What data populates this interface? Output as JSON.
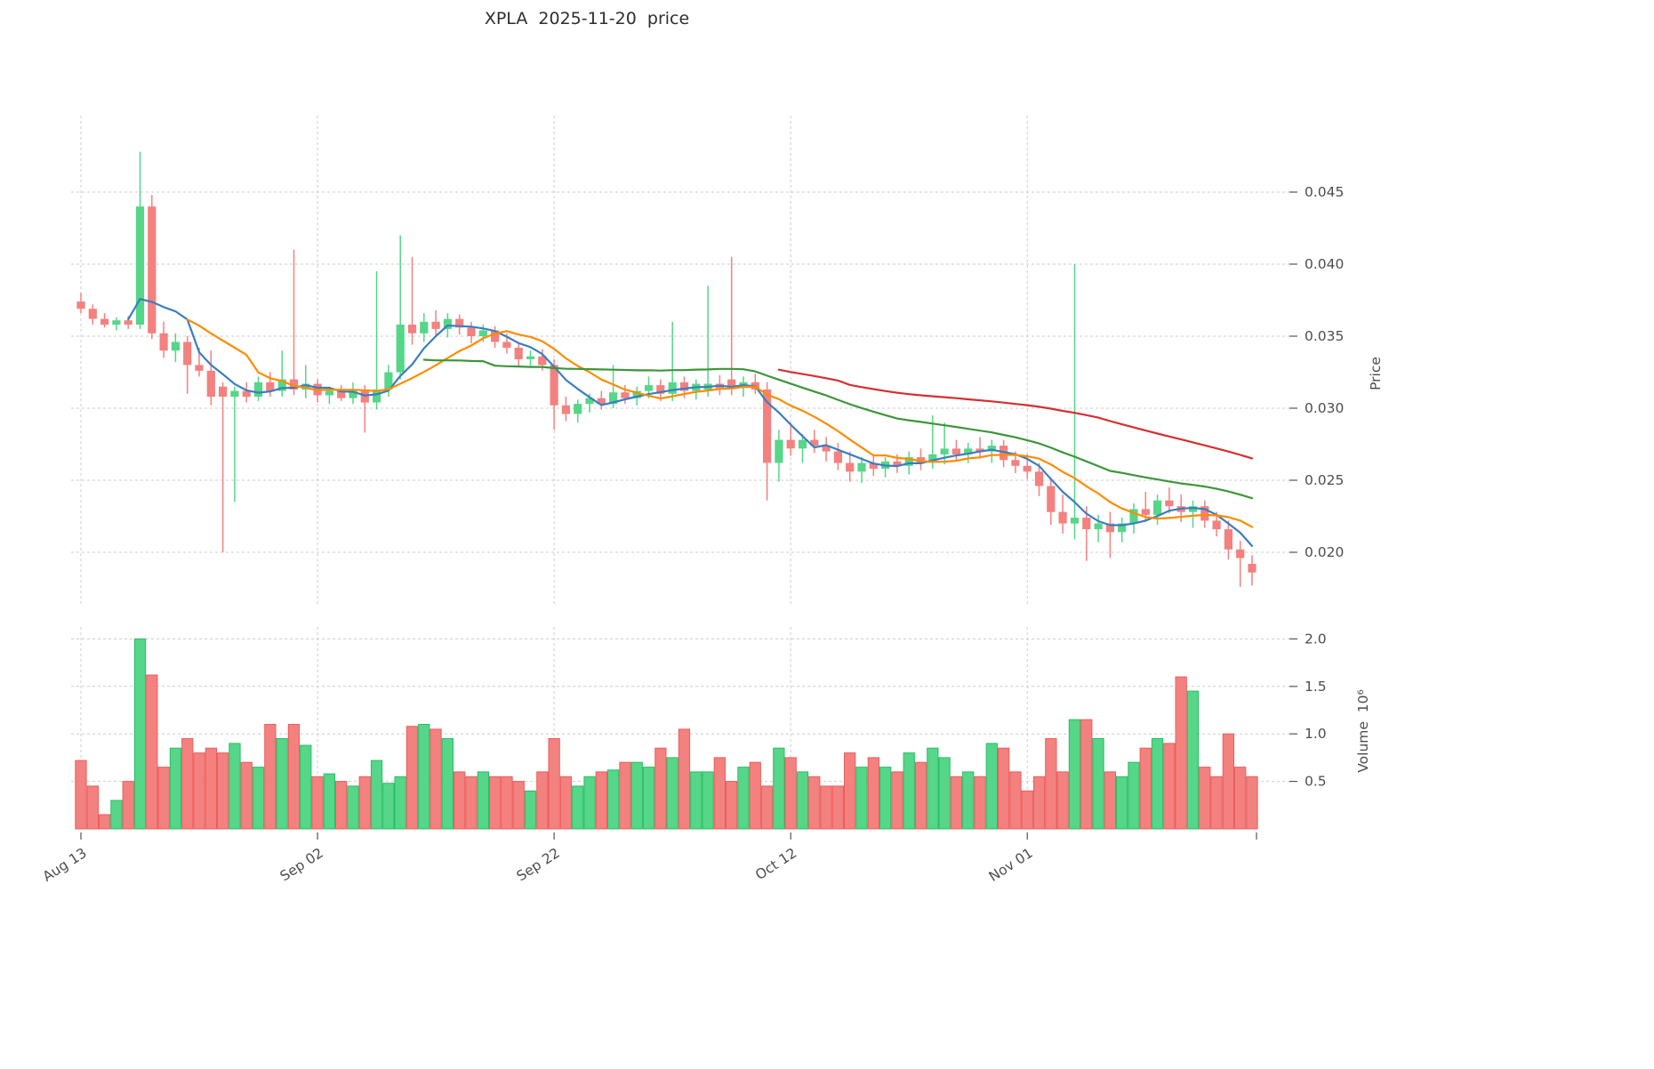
{
  "chart_data": {
    "type": "candlestick",
    "title": "XPLA  2025-11-20  price",
    "symbol": "XPLA",
    "as_of_date": "2025-11-20",
    "price_axis": {
      "label": "Price",
      "side": "right",
      "range": [
        0.0164,
        0.0503
      ],
      "ticks": [
        {
          "value": 0.02,
          "label": "0.020"
        },
        {
          "value": 0.025,
          "label": "0.025"
        },
        {
          "value": 0.03,
          "label": "0.030"
        },
        {
          "value": 0.035,
          "label": "0.035"
        },
        {
          "value": 0.04,
          "label": "0.040"
        },
        {
          "value": 0.045,
          "label": "0.045"
        }
      ]
    },
    "volume_axis": {
      "label": "Volume  10⁶",
      "side": "right",
      "range": [
        0,
        2.1
      ],
      "ticks": [
        {
          "value": 0.5,
          "label": "0.5"
        },
        {
          "value": 1.0,
          "label": "1.0"
        },
        {
          "value": 1.5,
          "label": "1.5"
        },
        {
          "value": 2.0,
          "label": "2.0"
        }
      ]
    },
    "x_ticks": [
      {
        "index": 0,
        "label": "Aug 13"
      },
      {
        "index": 20,
        "label": "Sep 02"
      },
      {
        "index": 40,
        "label": "Sep 22"
      },
      {
        "index": 60,
        "label": "Oct 12"
      },
      {
        "index": 80,
        "label": "Nov 01"
      }
    ],
    "grid": true,
    "moving_averages": [
      {
        "name": "MA5",
        "window": 5,
        "color": "#3a7ebf"
      },
      {
        "name": "MA10",
        "window": 10,
        "color": "#ff8c00"
      },
      {
        "name": "MA30",
        "window": 30,
        "color": "#3c9639"
      },
      {
        "name": "MA60",
        "window": 60,
        "color": "#d62f2f"
      }
    ],
    "colors": {
      "up": "#55d688",
      "down": "#f3817f",
      "up_edge": "#2bbd67",
      "down_edge": "#ec5e5c",
      "grid": "#cccccc",
      "text": "#4d4d4d"
    },
    "candles": [
      [
        0.0374,
        0.038,
        0.0366,
        0.0369
      ],
      [
        0.0369,
        0.0372,
        0.0358,
        0.0362
      ],
      [
        0.0362,
        0.0366,
        0.0356,
        0.0358
      ],
      [
        0.0358,
        0.0363,
        0.0354,
        0.0361
      ],
      [
        0.0361,
        0.0364,
        0.0355,
        0.0358
      ],
      [
        0.0358,
        0.0478,
        0.0355,
        0.044
      ],
      [
        0.044,
        0.0448,
        0.0348,
        0.0352
      ],
      [
        0.0352,
        0.036,
        0.0335,
        0.034
      ],
      [
        0.034,
        0.0352,
        0.0332,
        0.0346
      ],
      [
        0.0346,
        0.035,
        0.031,
        0.033
      ],
      [
        0.033,
        0.0342,
        0.0322,
        0.0326
      ],
      [
        0.0326,
        0.034,
        0.0302,
        0.0308
      ],
      [
        0.0315,
        0.0318,
        0.02,
        0.0308
      ],
      [
        0.0308,
        0.0315,
        0.0235,
        0.0312
      ],
      [
        0.0312,
        0.0318,
        0.0304,
        0.0308
      ],
      [
        0.0308,
        0.0322,
        0.0305,
        0.0318
      ],
      [
        0.0318,
        0.0325,
        0.0308,
        0.0312
      ],
      [
        0.0312,
        0.034,
        0.0308,
        0.032
      ],
      [
        0.032,
        0.041,
        0.0309,
        0.0313
      ],
      [
        0.0313,
        0.033,
        0.0307,
        0.0317
      ],
      [
        0.0317,
        0.032,
        0.0304,
        0.0309
      ],
      [
        0.0309,
        0.0315,
        0.0303,
        0.0312
      ],
      [
        0.0312,
        0.0316,
        0.0305,
        0.0307
      ],
      [
        0.0307,
        0.0318,
        0.0303,
        0.0312
      ],
      [
        0.0312,
        0.0316,
        0.0283,
        0.0304
      ],
      [
        0.0304,
        0.0395,
        0.0299,
        0.0313
      ],
      [
        0.0313,
        0.033,
        0.0308,
        0.0325
      ],
      [
        0.0325,
        0.042,
        0.032,
        0.0358
      ],
      [
        0.0358,
        0.0405,
        0.0344,
        0.0352
      ],
      [
        0.0352,
        0.0366,
        0.0346,
        0.036
      ],
      [
        0.036,
        0.0368,
        0.035,
        0.0355
      ],
      [
        0.0355,
        0.0366,
        0.0349,
        0.0362
      ],
      [
        0.0362,
        0.0365,
        0.0351,
        0.0356
      ],
      [
        0.0356,
        0.036,
        0.0345,
        0.035
      ],
      [
        0.035,
        0.0358,
        0.0346,
        0.0354
      ],
      [
        0.0354,
        0.0357,
        0.0342,
        0.0346
      ],
      [
        0.0346,
        0.0352,
        0.0338,
        0.0342
      ],
      [
        0.0342,
        0.0346,
        0.0329,
        0.0334
      ],
      [
        0.0334,
        0.034,
        0.0328,
        0.0336
      ],
      [
        0.0336,
        0.0341,
        0.0326,
        0.033
      ],
      [
        0.033,
        0.0334,
        0.0285,
        0.0302
      ],
      [
        0.0302,
        0.0308,
        0.0291,
        0.0296
      ],
      [
        0.0296,
        0.0306,
        0.029,
        0.0303
      ],
      [
        0.0303,
        0.031,
        0.0297,
        0.0307
      ],
      [
        0.0307,
        0.0312,
        0.0299,
        0.0303
      ],
      [
        0.0303,
        0.033,
        0.03,
        0.0311
      ],
      [
        0.0311,
        0.0316,
        0.0303,
        0.0307
      ],
      [
        0.0307,
        0.0315,
        0.0302,
        0.0312
      ],
      [
        0.0312,
        0.0322,
        0.0307,
        0.0316
      ],
      [
        0.0316,
        0.032,
        0.0305,
        0.031
      ],
      [
        0.031,
        0.036,
        0.0305,
        0.0318
      ],
      [
        0.0318,
        0.0322,
        0.0307,
        0.0312
      ],
      [
        0.0312,
        0.032,
        0.0306,
        0.0317
      ],
      [
        0.0313,
        0.0385,
        0.0308,
        0.0317
      ],
      [
        0.0317,
        0.0323,
        0.0309,
        0.0314
      ],
      [
        0.032,
        0.0405,
        0.0309,
        0.0314
      ],
      [
        0.0314,
        0.0322,
        0.0308,
        0.0318
      ],
      [
        0.0318,
        0.0324,
        0.031,
        0.0313
      ],
      [
        0.0313,
        0.0318,
        0.0236,
        0.0262
      ],
      [
        0.0262,
        0.0285,
        0.0249,
        0.0278
      ],
      [
        0.0278,
        0.029,
        0.0267,
        0.0272
      ],
      [
        0.0272,
        0.0282,
        0.0262,
        0.0278
      ],
      [
        0.0278,
        0.0285,
        0.0269,
        0.0274
      ],
      [
        0.0274,
        0.028,
        0.0263,
        0.027
      ],
      [
        0.027,
        0.0276,
        0.0257,
        0.0262
      ],
      [
        0.0262,
        0.027,
        0.0249,
        0.0256
      ],
      [
        0.0256,
        0.0266,
        0.0248,
        0.0262
      ],
      [
        0.0262,
        0.0268,
        0.0253,
        0.0258
      ],
      [
        0.0258,
        0.0266,
        0.0252,
        0.0263
      ],
      [
        0.0263,
        0.0268,
        0.0255,
        0.026
      ],
      [
        0.026,
        0.027,
        0.0254,
        0.0266
      ],
      [
        0.0266,
        0.0272,
        0.0257,
        0.0262
      ],
      [
        0.0262,
        0.0295,
        0.0258,
        0.0268
      ],
      [
        0.0268,
        0.029,
        0.0261,
        0.0272
      ],
      [
        0.0272,
        0.0278,
        0.0263,
        0.0268
      ],
      [
        0.0268,
        0.0276,
        0.0262,
        0.0272
      ],
      [
        0.0272,
        0.028,
        0.0265,
        0.027
      ],
      [
        0.027,
        0.0278,
        0.0262,
        0.0274
      ],
      [
        0.0274,
        0.0278,
        0.0259,
        0.0264
      ],
      [
        0.0264,
        0.027,
        0.0255,
        0.026
      ],
      [
        0.026,
        0.0268,
        0.0251,
        0.0256
      ],
      [
        0.0256,
        0.0262,
        0.0239,
        0.0246
      ],
      [
        0.0246,
        0.0252,
        0.0219,
        0.0228
      ],
      [
        0.0228,
        0.024,
        0.0213,
        0.022
      ],
      [
        0.022,
        0.04,
        0.0209,
        0.0224
      ],
      [
        0.0224,
        0.0232,
        0.0194,
        0.0216
      ],
      [
        0.0216,
        0.0226,
        0.0207,
        0.022
      ],
      [
        0.022,
        0.0228,
        0.0196,
        0.0214
      ],
      [
        0.0214,
        0.0224,
        0.0207,
        0.022
      ],
      [
        0.022,
        0.0234,
        0.0213,
        0.023
      ],
      [
        0.023,
        0.0242,
        0.0221,
        0.0226
      ],
      [
        0.0226,
        0.024,
        0.0219,
        0.0236
      ],
      [
        0.0236,
        0.0245,
        0.0227,
        0.0232
      ],
      [
        0.0232,
        0.024,
        0.0221,
        0.0228
      ],
      [
        0.0228,
        0.0236,
        0.0217,
        0.0232
      ],
      [
        0.0232,
        0.0236,
        0.0217,
        0.0222
      ],
      [
        0.0222,
        0.0228,
        0.0211,
        0.0216
      ],
      [
        0.0216,
        0.0222,
        0.0195,
        0.0202
      ],
      [
        0.0202,
        0.0208,
        0.0176,
        0.0196
      ],
      [
        0.0192,
        0.0198,
        0.0177,
        0.0186
      ]
    ],
    "volumes": [
      0.72,
      0.45,
      0.15,
      0.3,
      0.5,
      2.0,
      1.62,
      0.65,
      0.85,
      0.95,
      0.8,
      0.85,
      0.8,
      0.9,
      0.7,
      0.65,
      1.1,
      0.95,
      1.1,
      0.88,
      0.55,
      0.58,
      0.5,
      0.45,
      0.55,
      0.72,
      0.48,
      0.55,
      1.08,
      1.1,
      1.05,
      0.95,
      0.6,
      0.55,
      0.6,
      0.55,
      0.55,
      0.5,
      0.4,
      0.6,
      0.95,
      0.55,
      0.45,
      0.55,
      0.6,
      0.62,
      0.7,
      0.7,
      0.65,
      0.85,
      0.75,
      1.05,
      0.6,
      0.6,
      0.75,
      0.5,
      0.65,
      0.7,
      0.45,
      0.85,
      0.75,
      0.6,
      0.55,
      0.45,
      0.45,
      0.8,
      0.65,
      0.75,
      0.65,
      0.6,
      0.8,
      0.7,
      0.85,
      0.75,
      0.55,
      0.6,
      0.55,
      0.9,
      0.85,
      0.6,
      0.4,
      0.55,
      0.95,
      0.6,
      1.15,
      1.15,
      0.95,
      0.6,
      0.55,
      0.7,
      0.85,
      0.95,
      0.9,
      1.6,
      1.45,
      0.65,
      0.55,
      1.0,
      0.65,
      0.55
    ]
  }
}
